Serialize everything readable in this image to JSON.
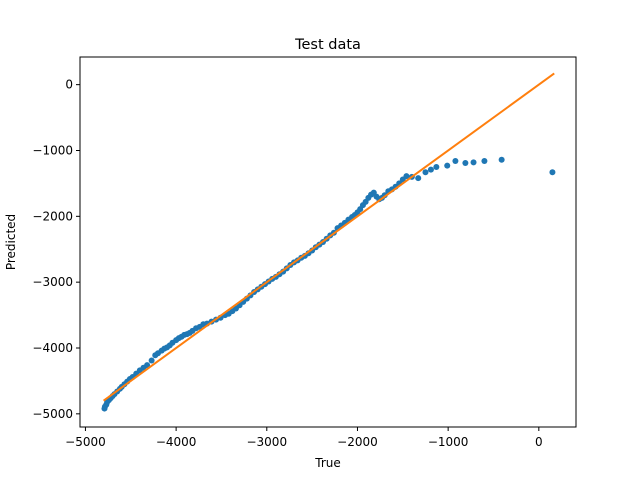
{
  "chart_data": {
    "type": "scatter",
    "title": "Test data",
    "xlabel": "True",
    "ylabel": "Predicted",
    "xlim": [
      -5060,
      410
    ],
    "ylim": [
      -5200,
      420
    ],
    "xticks": [
      -5000,
      -4000,
      -3000,
      -2000,
      -1000,
      0
    ],
    "xtick_labels": [
      "−5000",
      "−4000",
      "−3000",
      "−2000",
      "−1000",
      "0"
    ],
    "yticks": [
      0,
      -1000,
      -2000,
      -3000,
      -4000,
      -5000
    ],
    "ytick_labels": [
      "0",
      "−1000",
      "−2000",
      "−3000",
      "−4000",
      "−5000"
    ],
    "grid": false,
    "colors": {
      "points": "#1f77b4",
      "line": "#ff7f0e"
    },
    "series": [
      {
        "kind": "points",
        "x": [
          -4790,
          -4785,
          -4770,
          -4760,
          -4740,
          -4720,
          -4700,
          -4680,
          -4650,
          -4620,
          -4600,
          -4570,
          -4540,
          -4510,
          -4480,
          -4440,
          -4400,
          -4360,
          -4320,
          -4270,
          -4230,
          -4200,
          -4160,
          -4130,
          -4100,
          -4070,
          -4040,
          -4000,
          -3970,
          -3940,
          -3910,
          -3880,
          -3850,
          -3820,
          -3780,
          -3740,
          -3700,
          -3660,
          -3610,
          -3560,
          -3510,
          -3460,
          -3420,
          -3380,
          -3340,
          -3300,
          -3260,
          -3220,
          -3180,
          -3140,
          -3100,
          -3060,
          -3020,
          -2980,
          -2940,
          -2900,
          -2860,
          -2820,
          -2780,
          -2740,
          -2700,
          -2660,
          -2620,
          -2580,
          -2540,
          -2500,
          -2460,
          -2420,
          -2380,
          -2340,
          -2300,
          -2260,
          -2220,
          -2180,
          -2140,
          -2100,
          -2060,
          -2030,
          -2000,
          -1970,
          -1940,
          -1910,
          -1880,
          -1850,
          -1820,
          -1790,
          -1760,
          -1730,
          -1700,
          -1660,
          -1620,
          -1580,
          -1540,
          -1500,
          -1460,
          -1400,
          -1330,
          -1250,
          -1190,
          -1130,
          -1010,
          -920,
          -810,
          -720,
          -600,
          -410,
          150
        ],
        "y": [
          -4920,
          -4890,
          -4860,
          -4820,
          -4790,
          -4760,
          -4730,
          -4700,
          -4660,
          -4620,
          -4590,
          -4550,
          -4510,
          -4470,
          -4440,
          -4390,
          -4340,
          -4300,
          -4260,
          -4190,
          -4110,
          -4080,
          -4040,
          -4010,
          -3990,
          -3960,
          -3920,
          -3880,
          -3850,
          -3830,
          -3800,
          -3790,
          -3770,
          -3740,
          -3700,
          -3680,
          -3640,
          -3630,
          -3600,
          -3570,
          -3540,
          -3500,
          -3480,
          -3440,
          -3400,
          -3350,
          -3300,
          -3250,
          -3200,
          -3150,
          -3110,
          -3070,
          -3030,
          -2990,
          -2950,
          -2920,
          -2880,
          -2840,
          -2790,
          -2740,
          -2700,
          -2670,
          -2630,
          -2600,
          -2560,
          -2520,
          -2470,
          -2430,
          -2390,
          -2340,
          -2290,
          -2250,
          -2180,
          -2140,
          -2100,
          -2050,
          -2010,
          -1980,
          -1940,
          -1890,
          -1830,
          -1780,
          -1720,
          -1670,
          -1640,
          -1700,
          -1740,
          -1720,
          -1680,
          -1620,
          -1590,
          -1550,
          -1500,
          -1440,
          -1390,
          -1400,
          -1420,
          -1330,
          -1290,
          -1250,
          -1230,
          -1160,
          -1190,
          -1180,
          -1160,
          -1140,
          -1330
        ]
      },
      {
        "kind": "line",
        "x": [
          -4800,
          170
        ],
        "y": [
          -4800,
          170
        ]
      }
    ]
  }
}
